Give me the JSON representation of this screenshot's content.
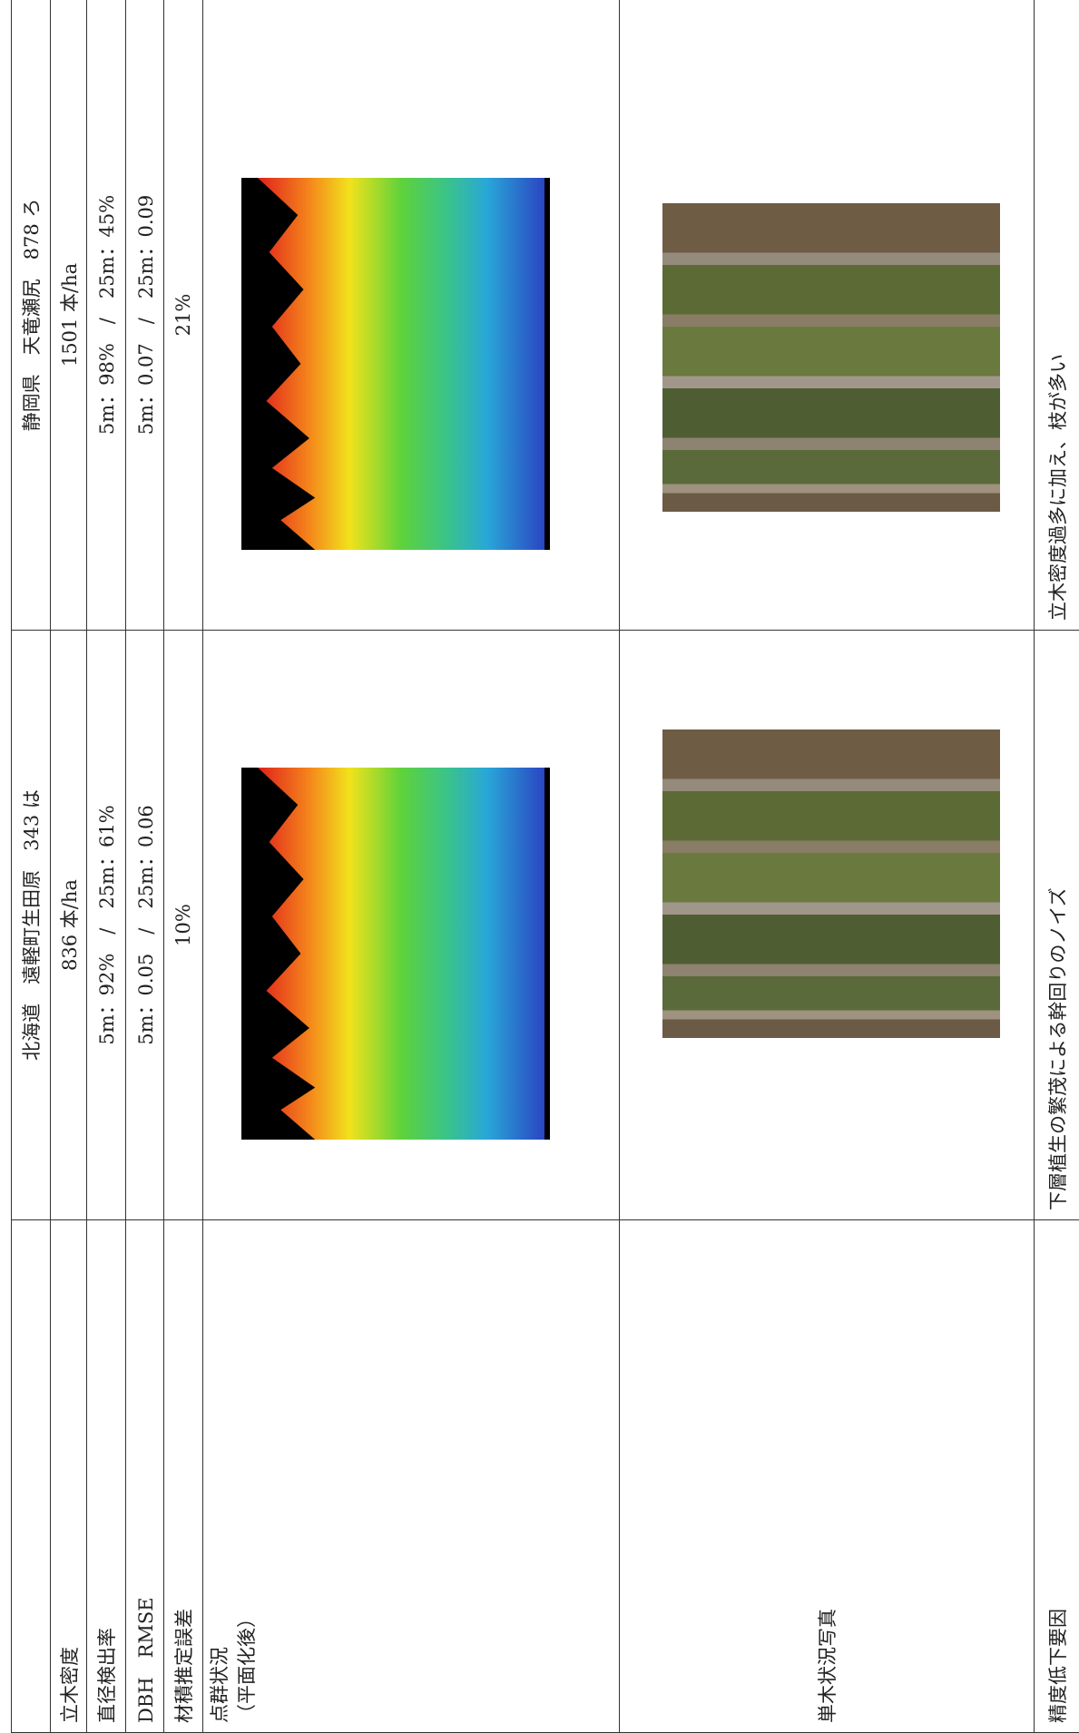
{
  "table": {
    "columns": [
      "北海道　遠軽町生田原　343 は",
      "静岡県　天竜瀬尻　878 ろ"
    ],
    "rows": [
      {
        "label": "立木密度",
        "values": [
          "836 本/ha",
          "1501 本/ha"
        ]
      },
      {
        "label": "直径検出率",
        "values": [
          "5m：92%　/　25m：61%",
          "5m：98%　/　25m：45%"
        ]
      },
      {
        "label": "DBH　RMSE",
        "values": [
          "5m：0.05　/　25m：0.06",
          "5m：0.07　/　25m：0.09"
        ]
      },
      {
        "label": "材積推定誤差",
        "values": [
          "10%",
          "21%"
        ]
      },
      {
        "label": [
          "点群状況",
          "（平面化後）"
        ]
      },
      {
        "label": "単木状況写真"
      },
      {
        "label": "精度低下要因",
        "values": [
          "下層植生の繁茂による幹回りのノイズ",
          "立木密度過多に加え、枝が多い"
        ]
      }
    ]
  }
}
